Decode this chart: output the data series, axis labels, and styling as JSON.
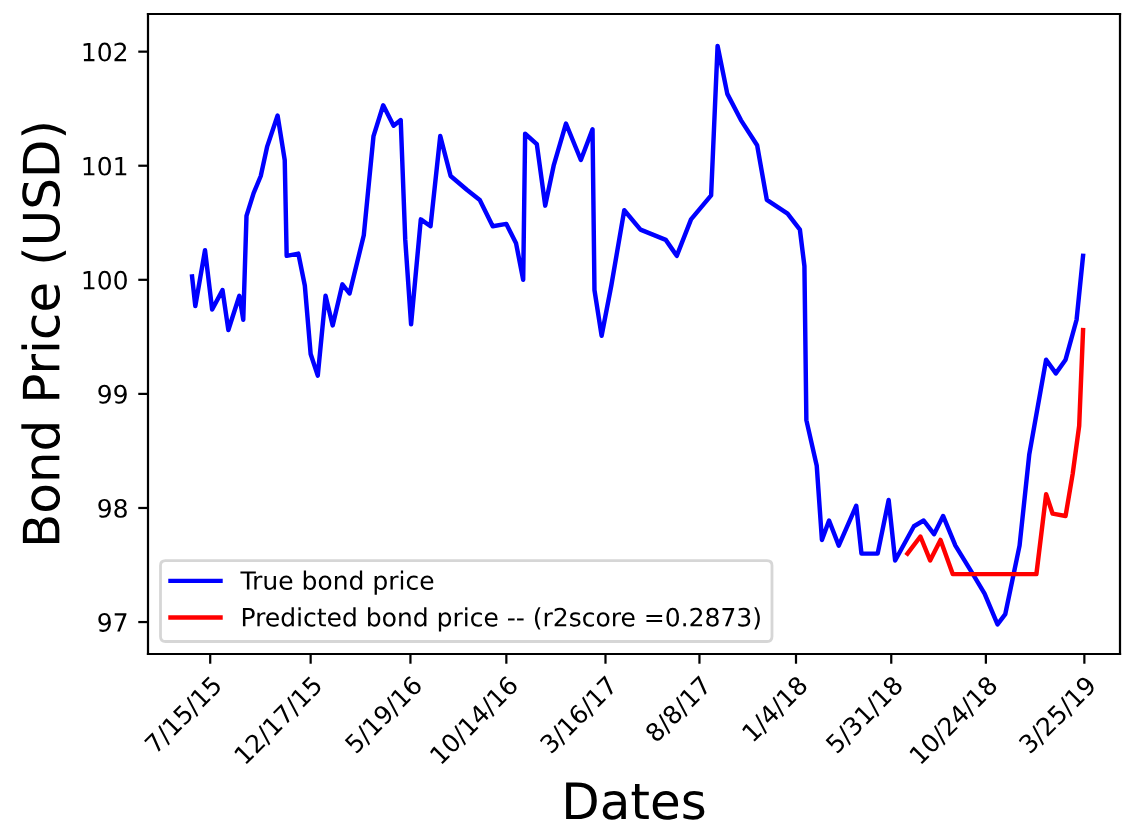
{
  "chart_data": {
    "type": "line",
    "xlabel": "Dates",
    "ylabel": "Bond Price (USD)",
    "xlim": [
      "2015-04-10",
      "2019-05-19"
    ],
    "ylim": [
      96.72,
      102.33
    ],
    "xticks": [
      {
        "value": "2015-07-15",
        "label": "7/15/15"
      },
      {
        "value": "2015-12-17",
        "label": "12/17/15"
      },
      {
        "value": "2016-05-19",
        "label": "5/19/16"
      },
      {
        "value": "2016-10-14",
        "label": "10/14/16"
      },
      {
        "value": "2017-03-16",
        "label": "3/16/17"
      },
      {
        "value": "2017-08-08",
        "label": "8/8/17"
      },
      {
        "value": "2018-01-04",
        "label": "1/4/18"
      },
      {
        "value": "2018-05-31",
        "label": "5/31/18"
      },
      {
        "value": "2018-10-24",
        "label": "10/24/18"
      },
      {
        "value": "2019-03-25",
        "label": "3/25/19"
      }
    ],
    "yticks": [
      97,
      98,
      99,
      100,
      101,
      102
    ],
    "grid": false,
    "legend": "bottom left",
    "line_style": "solid",
    "marker": "none",
    "series": [
      {
        "name": "True bond price",
        "color": "#0000ff",
        "x": [
          "2015-06-17",
          "2015-06-22",
          "2015-07-07",
          "2015-07-18",
          "2015-08-03",
          "2015-08-12",
          "2015-08-29",
          "2015-09-04",
          "2015-09-09",
          "2015-09-20",
          "2015-10-01",
          "2015-10-11",
          "2015-10-27",
          "2015-11-07",
          "2015-11-10",
          "2015-11-28",
          "2015-12-08",
          "2015-12-17",
          "2015-12-28",
          "2016-01-09",
          "2016-01-20",
          "2016-02-04",
          "2016-02-15",
          "2016-03-08",
          "2016-03-23",
          "2016-04-07",
          "2016-04-23",
          "2016-05-04",
          "2016-05-11",
          "2016-05-20",
          "2016-06-04",
          "2016-06-19",
          "2016-07-04",
          "2016-07-20",
          "2016-08-14",
          "2016-09-03",
          "2016-09-23",
          "2016-10-14",
          "2016-10-29",
          "2016-11-09",
          "2016-11-12",
          "2016-11-30",
          "2016-12-13",
          "2016-12-26",
          "2017-01-14",
          "2017-02-06",
          "2017-02-24",
          "2017-02-27",
          "2017-03-10",
          "2017-03-25",
          "2017-04-14",
          "2017-05-09",
          "2017-06-17",
          "2017-07-04",
          "2017-07-26",
          "2017-08-26",
          "2017-09-05",
          "2017-09-20",
          "2017-10-11",
          "2017-11-05",
          "2017-11-20",
          "2017-12-22",
          "2018-01-10",
          "2018-01-17",
          "2018-01-20",
          "2018-02-05",
          "2018-02-13",
          "2018-02-24",
          "2018-03-11",
          "2018-04-07",
          "2018-04-15",
          "2018-05-10",
          "2018-05-27",
          "2018-06-06",
          "2018-07-05",
          "2018-07-20",
          "2018-08-05",
          "2018-08-19",
          "2018-09-07",
          "2018-10-04",
          "2018-10-22",
          "2018-11-11",
          "2018-11-23",
          "2018-12-15",
          "2018-12-30",
          "2019-01-25",
          "2019-02-09",
          "2019-02-24",
          "2019-03-13",
          "2019-03-23"
        ],
        "values": [
          100.03,
          99.77,
          100.26,
          99.74,
          99.91,
          99.56,
          99.86,
          99.65,
          100.56,
          100.76,
          100.91,
          101.17,
          101.44,
          101.05,
          100.21,
          100.23,
          99.95,
          99.35,
          99.16,
          99.86,
          99.6,
          99.96,
          99.88,
          100.39,
          101.26,
          101.53,
          101.35,
          101.4,
          100.35,
          99.61,
          100.53,
          100.47,
          101.26,
          100.91,
          100.79,
          100.7,
          100.47,
          100.49,
          100.32,
          100.0,
          101.28,
          101.19,
          100.65,
          101.0,
          101.37,
          101.05,
          101.32,
          99.91,
          99.51,
          99.95,
          100.61,
          100.44,
          100.35,
          100.21,
          100.53,
          100.74,
          102.05,
          101.63,
          101.4,
          101.18,
          100.7,
          100.58,
          100.44,
          100.12,
          98.77,
          98.37,
          97.72,
          97.89,
          97.67,
          98.02,
          97.6,
          97.6,
          98.07,
          97.54,
          97.84,
          97.89,
          97.77,
          97.93,
          97.67,
          97.42,
          97.25,
          96.98,
          97.07,
          97.67,
          98.47,
          99.3,
          99.18,
          99.3,
          99.65,
          100.21
        ]
      },
      {
        "name": "Predicted bond price -- (r2score =0.2873)",
        "color": "#ff0000",
        "x": [
          "2018-06-25",
          "2018-07-15",
          "2018-07-30",
          "2018-08-15",
          "2018-09-03",
          "2018-09-23",
          "2019-01-10",
          "2019-01-25",
          "2019-02-04",
          "2019-02-24",
          "2019-03-07",
          "2019-03-17",
          "2019-03-23"
        ],
        "values": [
          97.6,
          97.75,
          97.54,
          97.72,
          97.42,
          97.42,
          97.42,
          98.12,
          97.95,
          97.93,
          98.3,
          98.72,
          99.56
        ]
      }
    ]
  }
}
